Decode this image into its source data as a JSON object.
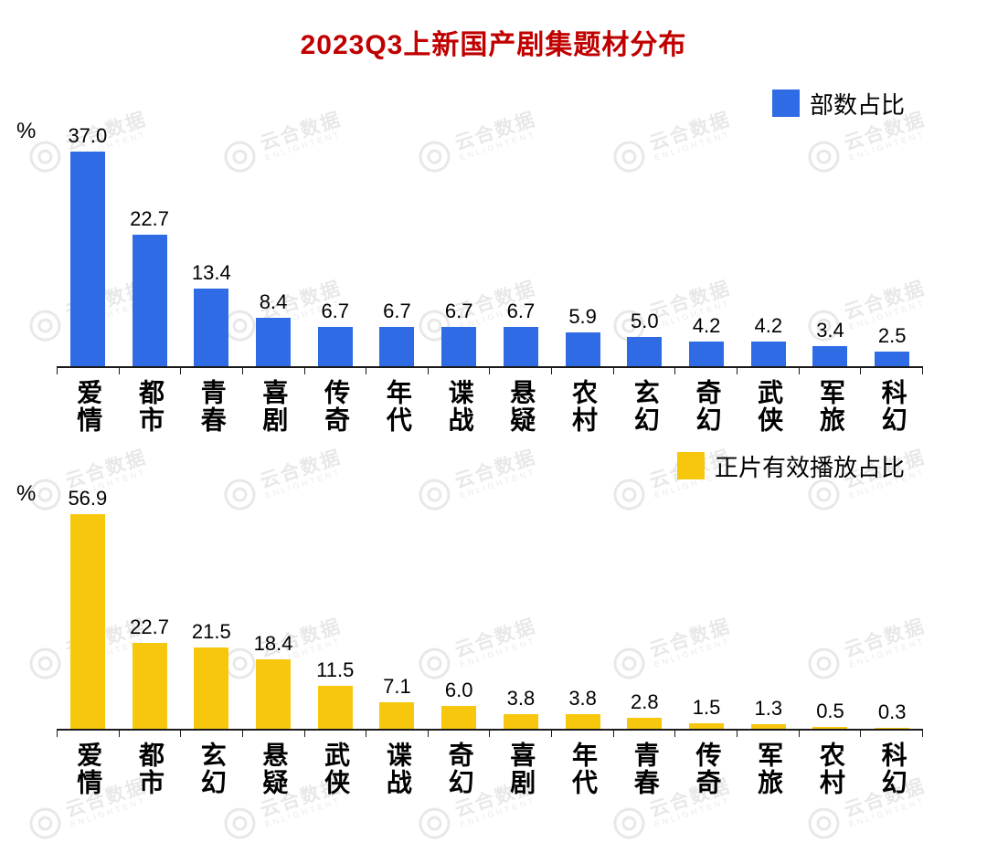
{
  "title": "2023Q3上新国产剧集题材分布",
  "watermark": {
    "name": "云合数据",
    "subname": "ENLIGHTENT"
  },
  "chart_data": [
    {
      "type": "bar",
      "name": "部数占比",
      "legend": "部数占比",
      "color": "#2e6be5",
      "ylabel": "%",
      "categories": [
        "爱情",
        "都市",
        "青春",
        "喜剧",
        "传奇",
        "年代",
        "谍战",
        "悬疑",
        "农村",
        "玄幻",
        "奇幻",
        "武侠",
        "军旅",
        "科幻"
      ],
      "values": [
        37.0,
        22.7,
        13.4,
        8.4,
        6.7,
        6.7,
        6.7,
        6.7,
        5.9,
        5.0,
        4.2,
        4.2,
        3.4,
        2.5
      ],
      "ylim": [
        0,
        37
      ],
      "grid": false,
      "legend_position": "top-right",
      "value_labels": true
    },
    {
      "type": "bar",
      "name": "正片有效播放占比",
      "legend": "正片有效播放占比",
      "color": "#f7c70e",
      "ylabel": "%",
      "categories": [
        "爱情",
        "都市",
        "玄幻",
        "悬疑",
        "武侠",
        "谍战",
        "奇幻",
        "喜剧",
        "年代",
        "青春",
        "传奇",
        "军旅",
        "农村",
        "科幻"
      ],
      "values": [
        56.9,
        22.7,
        21.5,
        18.4,
        11.5,
        7.1,
        6.0,
        3.8,
        3.8,
        2.8,
        1.5,
        1.3,
        0.5,
        0.3
      ],
      "ylim": [
        0,
        57
      ],
      "grid": false,
      "legend_position": "top-right",
      "value_labels": true
    }
  ]
}
